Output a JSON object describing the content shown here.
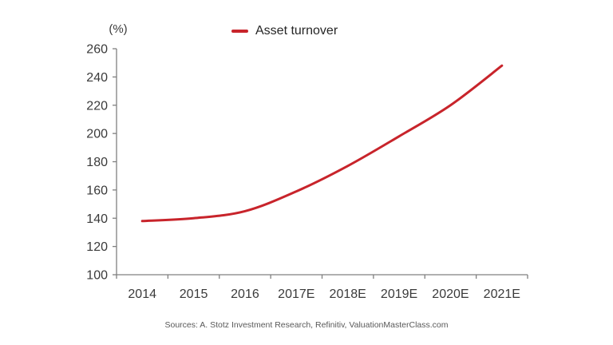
{
  "chart_data": {
    "type": "line",
    "title": "",
    "unit_label": "(%)",
    "categories": [
      "2014",
      "2015",
      "2016",
      "2017E",
      "2018E",
      "2019E",
      "2020E",
      "2021E"
    ],
    "series": [
      {
        "name": "Asset turnover",
        "values": [
          138,
          140,
          145,
          159,
          177,
          198,
          220,
          248
        ]
      }
    ],
    "ylim": [
      100,
      260
    ],
    "ytick_step": 20,
    "grid": false,
    "legend_position": "top-center",
    "smoothed": true
  },
  "legend": {
    "label": "Asset turnover"
  },
  "source_note": "Sources: A. Stotz Investment Research, Refinitiv, ValuationMasterClass.com",
  "colors": {
    "line": "#c8242b",
    "axis": "#808080",
    "tick_label": "#3a3a3a",
    "source_text": "#595959"
  }
}
